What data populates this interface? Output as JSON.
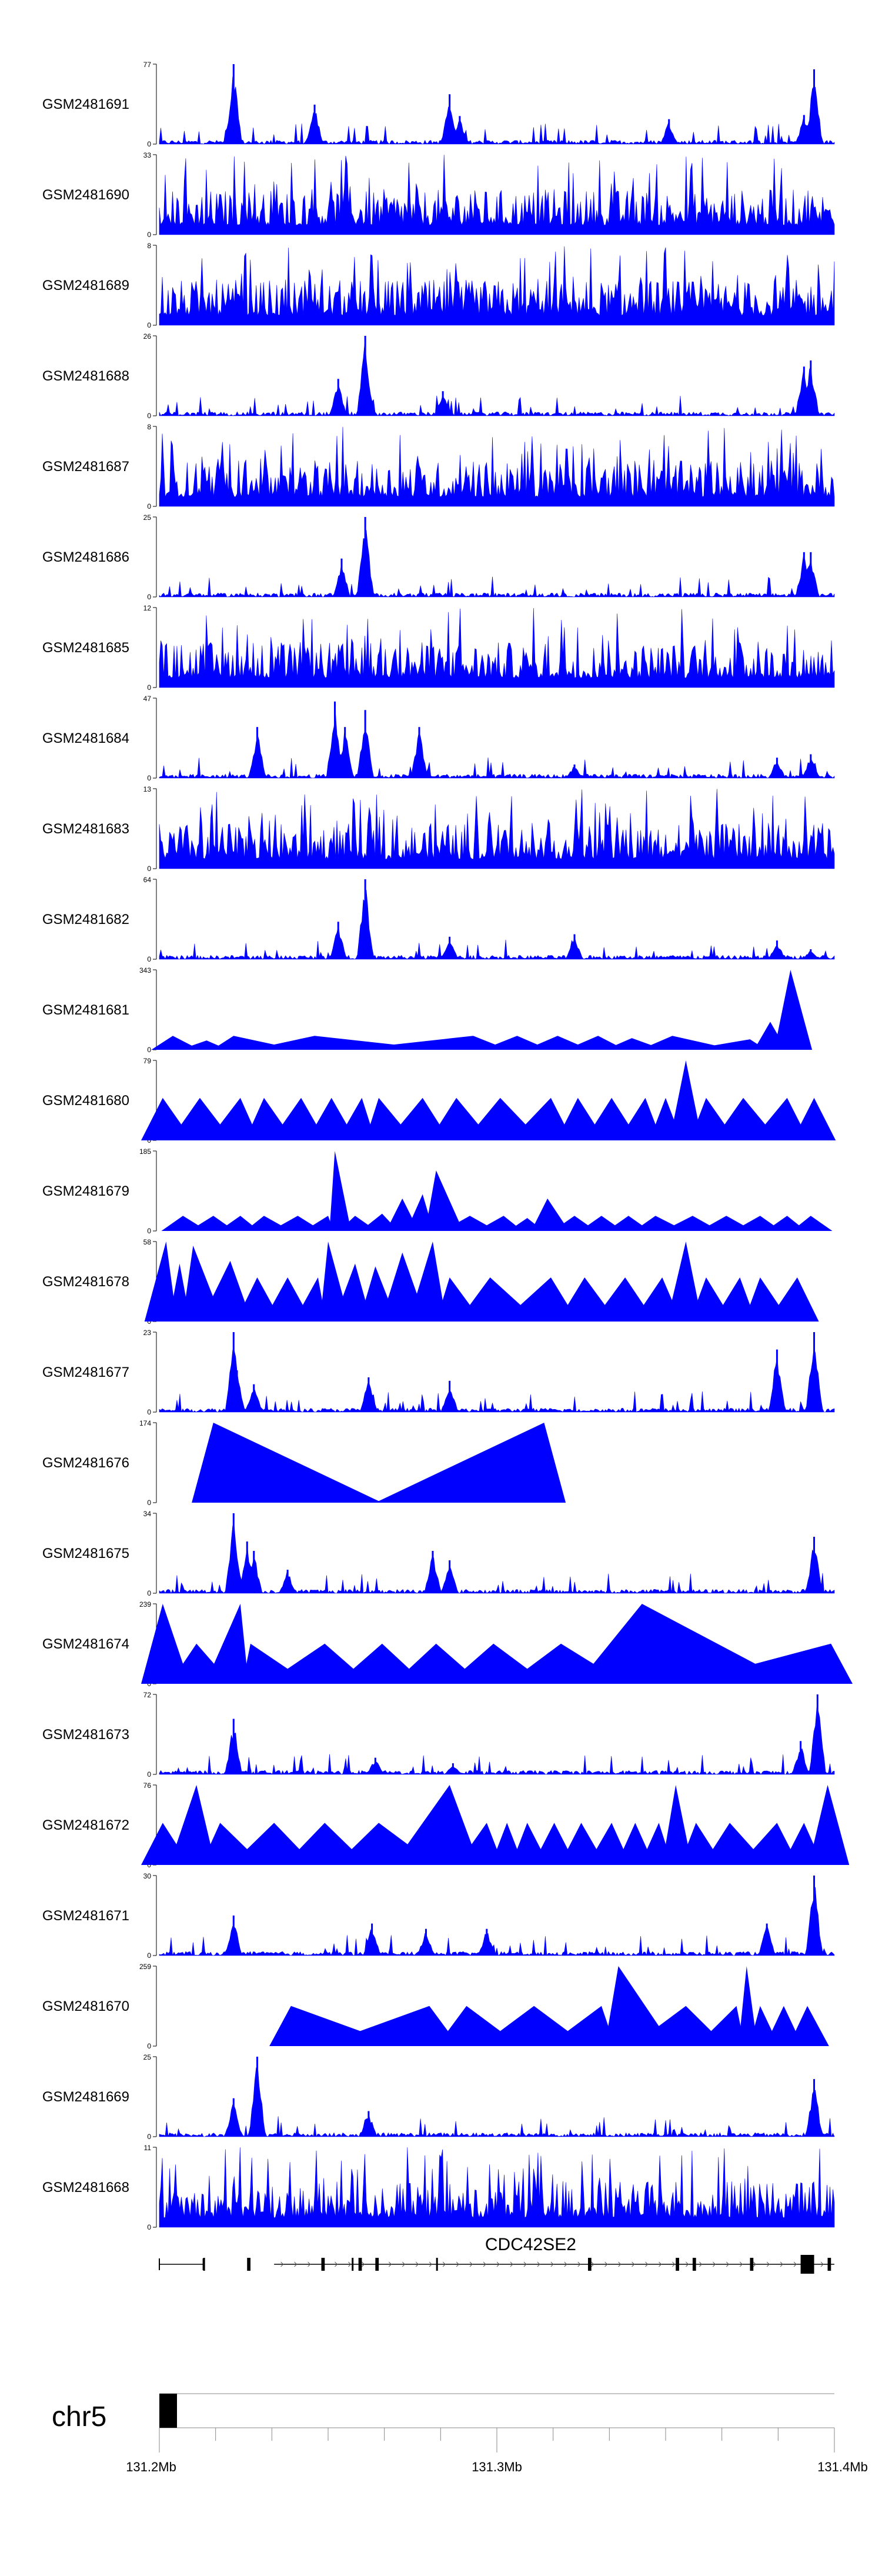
{
  "chart_data": {
    "type": "area",
    "title": "",
    "xlabel": "",
    "ylabel": "",
    "x_unit": "Mb",
    "xlim": [
      131.2,
      131.4
    ],
    "series_color": "#0000ff",
    "tracks": [
      {
        "name": "GSM2481691",
        "ymax": 77,
        "profile": "narrow",
        "peaks": [
          [
            131.222,
            77
          ],
          [
            131.246,
            38
          ],
          [
            131.286,
            48
          ],
          [
            131.289,
            27
          ],
          [
            131.351,
            24
          ],
          [
            131.391,
            28
          ],
          [
            131.394,
            72
          ]
        ]
      },
      {
        "name": "GSM2481690",
        "ymax": 33,
        "profile": "spiky",
        "peaks": []
      },
      {
        "name": "GSM2481689",
        "ymax": 8,
        "profile": "spiky",
        "peaks": []
      },
      {
        "name": "GSM2481688",
        "ymax": 26,
        "profile": "narrow",
        "peaks": [
          [
            131.253,
            12
          ],
          [
            131.261,
            26
          ],
          [
            131.284,
            8
          ],
          [
            131.391,
            16
          ],
          [
            131.393,
            18
          ]
        ]
      },
      {
        "name": "GSM2481687",
        "ymax": 8,
        "profile": "spiky",
        "peaks": []
      },
      {
        "name": "GSM2481686",
        "ymax": 25,
        "profile": "narrow",
        "peaks": [
          [
            131.254,
            12
          ],
          [
            131.261,
            25
          ],
          [
            131.391,
            14
          ],
          [
            131.393,
            14
          ]
        ]
      },
      {
        "name": "GSM2481685",
        "ymax": 12,
        "profile": "spiky",
        "peaks": []
      },
      {
        "name": "GSM2481684",
        "ymax": 47,
        "profile": "narrow",
        "peaks": [
          [
            131.229,
            30
          ],
          [
            131.252,
            45
          ],
          [
            131.255,
            30
          ],
          [
            131.261,
            40
          ],
          [
            131.277,
            30
          ],
          [
            131.323,
            8
          ],
          [
            131.383,
            12
          ],
          [
            131.393,
            14
          ]
        ]
      },
      {
        "name": "GSM2481683",
        "ymax": 13,
        "profile": "spiky",
        "peaks": []
      },
      {
        "name": "GSM2481682",
        "ymax": 64,
        "profile": "narrow",
        "peaks": [
          [
            131.253,
            30
          ],
          [
            131.261,
            64
          ],
          [
            131.286,
            18
          ],
          [
            131.323,
            20
          ],
          [
            131.383,
            15
          ],
          [
            131.393,
            8
          ]
        ]
      },
      {
        "name": "GSM2481681",
        "ymax": 343,
        "profile": "triangles",
        "peaks": [
          [
            131.204,
            60
          ],
          [
            131.214,
            40
          ],
          [
            131.222,
            60
          ],
          [
            131.246,
            60
          ],
          [
            131.293,
            60
          ],
          [
            131.306,
            60
          ],
          [
            131.318,
            60
          ],
          [
            131.33,
            60
          ],
          [
            131.34,
            50
          ],
          [
            131.352,
            60
          ],
          [
            131.375,
            45
          ],
          [
            131.381,
            120
          ],
          [
            131.387,
            343
          ]
        ]
      },
      {
        "name": "GSM2481680",
        "ymax": 79,
        "profile": "triangles",
        "peaks": [
          [
            131.201,
            42
          ],
          [
            131.212,
            42
          ],
          [
            131.224,
            42
          ],
          [
            131.231,
            42
          ],
          [
            131.242,
            42
          ],
          [
            131.251,
            42
          ],
          [
            131.26,
            42
          ],
          [
            131.265,
            42
          ],
          [
            131.278,
            42
          ],
          [
            131.288,
            42
          ],
          [
            131.301,
            42
          ],
          [
            131.316,
            42
          ],
          [
            131.324,
            42
          ],
          [
            131.334,
            42
          ],
          [
            131.344,
            42
          ],
          [
            131.35,
            42
          ],
          [
            131.356,
            79
          ],
          [
            131.362,
            42
          ],
          [
            131.373,
            42
          ],
          [
            131.386,
            42
          ],
          [
            131.394,
            42
          ]
        ]
      },
      {
        "name": "GSM2481679",
        "ymax": 185,
        "profile": "triangles",
        "peaks": [
          [
            131.207,
            35
          ],
          [
            131.216,
            35
          ],
          [
            131.224,
            35
          ],
          [
            131.231,
            35
          ],
          [
            131.241,
            35
          ],
          [
            131.25,
            35
          ],
          [
            131.252,
            185
          ],
          [
            131.258,
            35
          ],
          [
            131.266,
            40
          ],
          [
            131.272,
            75
          ],
          [
            131.278,
            85
          ],
          [
            131.282,
            140
          ],
          [
            131.292,
            35
          ],
          [
            131.302,
            35
          ],
          [
            131.309,
            30
          ],
          [
            131.315,
            75
          ],
          [
            131.323,
            35
          ],
          [
            131.331,
            35
          ],
          [
            131.339,
            35
          ],
          [
            131.347,
            35
          ],
          [
            131.358,
            35
          ],
          [
            131.368,
            35
          ],
          [
            131.378,
            35
          ],
          [
            131.386,
            35
          ],
          [
            131.393,
            35
          ]
        ]
      },
      {
        "name": "GSM2481678",
        "ymax": 58,
        "profile": "triangles",
        "peaks": [
          [
            131.202,
            58
          ],
          [
            131.206,
            42
          ],
          [
            131.21,
            55
          ],
          [
            131.221,
            44
          ],
          [
            131.229,
            32
          ],
          [
            131.238,
            32
          ],
          [
            131.247,
            32
          ],
          [
            131.25,
            58
          ],
          [
            131.258,
            42
          ],
          [
            131.264,
            40
          ],
          [
            131.272,
            50
          ],
          [
            131.281,
            58
          ],
          [
            131.286,
            32
          ],
          [
            131.298,
            32
          ],
          [
            131.316,
            32
          ],
          [
            131.326,
            32
          ],
          [
            131.338,
            32
          ],
          [
            131.349,
            32
          ],
          [
            131.356,
            58
          ],
          [
            131.362,
            32
          ],
          [
            131.372,
            32
          ],
          [
            131.378,
            32
          ],
          [
            131.389,
            32
          ]
        ]
      },
      {
        "name": "GSM2481677",
        "ymax": 23,
        "profile": "narrow",
        "peaks": [
          [
            131.222,
            23
          ],
          [
            131.223,
            12
          ],
          [
            131.228,
            8
          ],
          [
            131.262,
            10
          ],
          [
            131.286,
            9
          ],
          [
            131.383,
            18
          ],
          [
            131.394,
            23
          ]
        ]
      },
      {
        "name": "GSM2481676",
        "ymax": 174,
        "profile": "triangles",
        "peaks": [
          [
            131.216,
            174
          ],
          [
            131.314,
            174
          ]
        ]
      },
      {
        "name": "GSM2481675",
        "ymax": 34,
        "profile": "narrow",
        "peaks": [
          [
            131.222,
            34
          ],
          [
            131.226,
            22
          ],
          [
            131.228,
            18
          ],
          [
            131.238,
            10
          ],
          [
            131.281,
            18
          ],
          [
            131.286,
            14
          ],
          [
            131.394,
            24
          ]
        ]
      },
      {
        "name": "GSM2481674",
        "ymax": 239,
        "profile": "triangles",
        "peaks": [
          [
            131.201,
            239
          ],
          [
            131.211,
            120
          ],
          [
            131.224,
            239
          ],
          [
            131.227,
            120
          ],
          [
            131.249,
            120
          ],
          [
            131.266,
            120
          ],
          [
            131.282,
            120
          ],
          [
            131.299,
            120
          ],
          [
            131.319,
            120
          ],
          [
            131.343,
            239
          ],
          [
            131.399,
            120
          ]
        ]
      },
      {
        "name": "GSM2481673",
        "ymax": 72,
        "profile": "narrow",
        "peaks": [
          [
            131.222,
            50
          ],
          [
            131.264,
            15
          ],
          [
            131.287,
            10
          ],
          [
            131.39,
            30
          ],
          [
            131.395,
            72
          ]
        ]
      },
      {
        "name": "GSM2481672",
        "ymax": 76,
        "profile": "triangles",
        "peaks": [
          [
            131.201,
            40
          ],
          [
            131.211,
            76
          ],
          [
            131.218,
            40
          ],
          [
            131.234,
            40
          ],
          [
            131.249,
            40
          ],
          [
            131.265,
            40
          ],
          [
            131.286,
            76
          ],
          [
            131.297,
            40
          ],
          [
            131.303,
            40
          ],
          [
            131.309,
            40
          ],
          [
            131.317,
            40
          ],
          [
            131.325,
            40
          ],
          [
            131.334,
            40
          ],
          [
            131.341,
            40
          ],
          [
            131.348,
            40
          ],
          [
            131.353,
            76
          ],
          [
            131.359,
            40
          ],
          [
            131.369,
            40
          ],
          [
            131.383,
            40
          ],
          [
            131.391,
            40
          ],
          [
            131.398,
            76
          ]
        ]
      },
      {
        "name": "GSM2481671",
        "ymax": 30,
        "profile": "narrow",
        "peaks": [
          [
            131.222,
            15
          ],
          [
            131.263,
            12
          ],
          [
            131.279,
            10
          ],
          [
            131.297,
            10
          ],
          [
            131.38,
            12
          ],
          [
            131.394,
            30
          ]
        ]
      },
      {
        "name": "GSM2481670",
        "ymax": 259,
        "profile": "triangles",
        "peaks": [
          [
            131.239,
            130
          ],
          [
            131.28,
            130
          ],
          [
            131.291,
            130
          ],
          [
            131.311,
            130
          ],
          [
            131.331,
            130
          ],
          [
            131.336,
            259
          ],
          [
            131.356,
            130
          ],
          [
            131.371,
            130
          ],
          [
            131.374,
            259
          ],
          [
            131.378,
            130
          ],
          [
            131.385,
            130
          ],
          [
            131.392,
            130
          ]
        ]
      },
      {
        "name": "GSM2481669",
        "ymax": 25,
        "profile": "narrow",
        "peaks": [
          [
            131.222,
            12
          ],
          [
            131.229,
            25
          ],
          [
            131.262,
            8
          ],
          [
            131.394,
            18
          ]
        ]
      },
      {
        "name": "GSM2481668",
        "ymax": 11,
        "profile": "spiky",
        "peaks": []
      }
    ],
    "gene": {
      "name": "CDC42SE2",
      "start": 131.213,
      "end": 131.4,
      "exons": [
        [
          131.213,
          131.2135
        ],
        [
          131.226,
          131.227
        ],
        [
          131.248,
          131.249
        ],
        [
          131.257,
          131.2575
        ],
        [
          131.259,
          131.26
        ],
        [
          131.264,
          131.265
        ],
        [
          131.282,
          131.2825
        ],
        [
          131.327,
          131.328
        ],
        [
          131.353,
          131.354
        ],
        [
          131.358,
          131.359
        ],
        [
          131.375,
          131.376
        ],
        [
          131.39,
          131.394
        ],
        [
          131.398,
          131.399
        ]
      ]
    },
    "ideogram": {
      "chromosome": "chr5",
      "ticks": [
        "131.2Mb",
        "131.3Mb",
        "131.4Mb"
      ],
      "tick_values": [
        131.2,
        131.3,
        131.4
      ]
    }
  }
}
